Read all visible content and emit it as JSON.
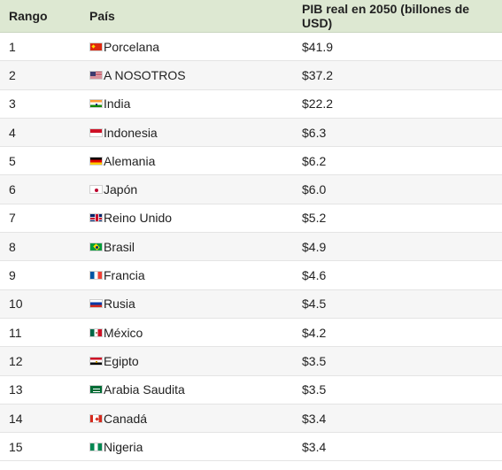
{
  "table": {
    "headers": {
      "rank": "Rango",
      "country": "País",
      "gdp": "PIB real en 2050 (billones de USD)"
    },
    "rows": [
      {
        "rank": "1",
        "country": "Porcelana",
        "flag": "cn-flag-icon",
        "gdp": "$41.9"
      },
      {
        "rank": "2",
        "country": "A NOSOTROS",
        "flag": "us-flag-icon",
        "gdp": "$37.2"
      },
      {
        "rank": "3",
        "country": "India",
        "flag": "in-flag-icon",
        "gdp": "$22.2"
      },
      {
        "rank": "4",
        "country": "Indonesia",
        "flag": "id-flag-icon",
        "gdp": "$6.3"
      },
      {
        "rank": "5",
        "country": "Alemania",
        "flag": "de-flag-icon",
        "gdp": "$6.2"
      },
      {
        "rank": "6",
        "country": "Japón",
        "flag": "jp-flag-icon",
        "gdp": "$6.0"
      },
      {
        "rank": "7",
        "country": "Reino Unido",
        "flag": "gb-flag-icon",
        "gdp": "$5.2"
      },
      {
        "rank": "8",
        "country": "Brasil",
        "flag": "br-flag-icon",
        "gdp": "$4.9"
      },
      {
        "rank": "9",
        "country": "Francia",
        "flag": "fr-flag-icon",
        "gdp": "$4.6"
      },
      {
        "rank": "10",
        "country": "Rusia",
        "flag": "ru-flag-icon",
        "gdp": "$4.5"
      },
      {
        "rank": "11",
        "country": "México",
        "flag": "mx-flag-icon",
        "gdp": "$4.2"
      },
      {
        "rank": "12",
        "country": "Egipto",
        "flag": "eg-flag-icon",
        "gdp": "$3.5"
      },
      {
        "rank": "13",
        "country": "Arabia Saudita",
        "flag": "sa-flag-icon",
        "gdp": "$3.5"
      },
      {
        "rank": "14",
        "country": "Canadá",
        "flag": "ca-flag-icon",
        "gdp": "$3.4"
      },
      {
        "rank": "15",
        "country": "Nigeria",
        "flag": "ng-flag-icon",
        "gdp": "$3.4"
      }
    ]
  },
  "colors": {
    "header_bg": "#dde8d2",
    "alt_row_bg": "#f6f6f6",
    "border": "#e4e4e4"
  }
}
